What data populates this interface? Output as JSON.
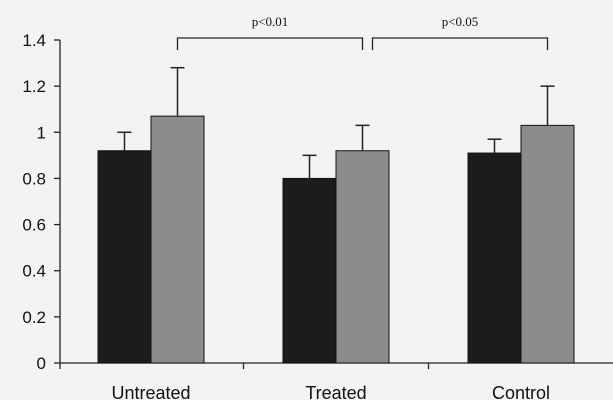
{
  "chart_data": {
    "type": "bar",
    "title": "",
    "xlabel": "",
    "ylabel": "",
    "ylim": [
      0,
      1.4
    ],
    "yticks": [
      0,
      0.2,
      0.4,
      0.6,
      0.8,
      1,
      1.2,
      1.4
    ],
    "ytick_labels": [
      "0",
      "0.2",
      "0.4",
      "0.6",
      "0.8",
      "1",
      "1.2",
      "1.4"
    ],
    "categories": [
      "Untreated",
      "Treated",
      "Control"
    ],
    "series": [
      {
        "color": "#1c1c1c",
        "values": [
          0.92,
          0.8,
          0.91
        ],
        "errors": [
          0.08,
          0.1,
          0.06
        ]
      },
      {
        "color": "#8c8c8c",
        "values": [
          1.07,
          0.92,
          1.03
        ],
        "errors": [
          0.21,
          0.11,
          0.17
        ]
      }
    ],
    "annotations": [
      {
        "text": "p<0.01",
        "from_category": 0,
        "to_category": 1,
        "y": 1.4
      },
      {
        "text": "p<0.05",
        "from_category": 1,
        "to_category": 2,
        "y": 1.4
      }
    ],
    "grid": false,
    "legend": "none"
  }
}
